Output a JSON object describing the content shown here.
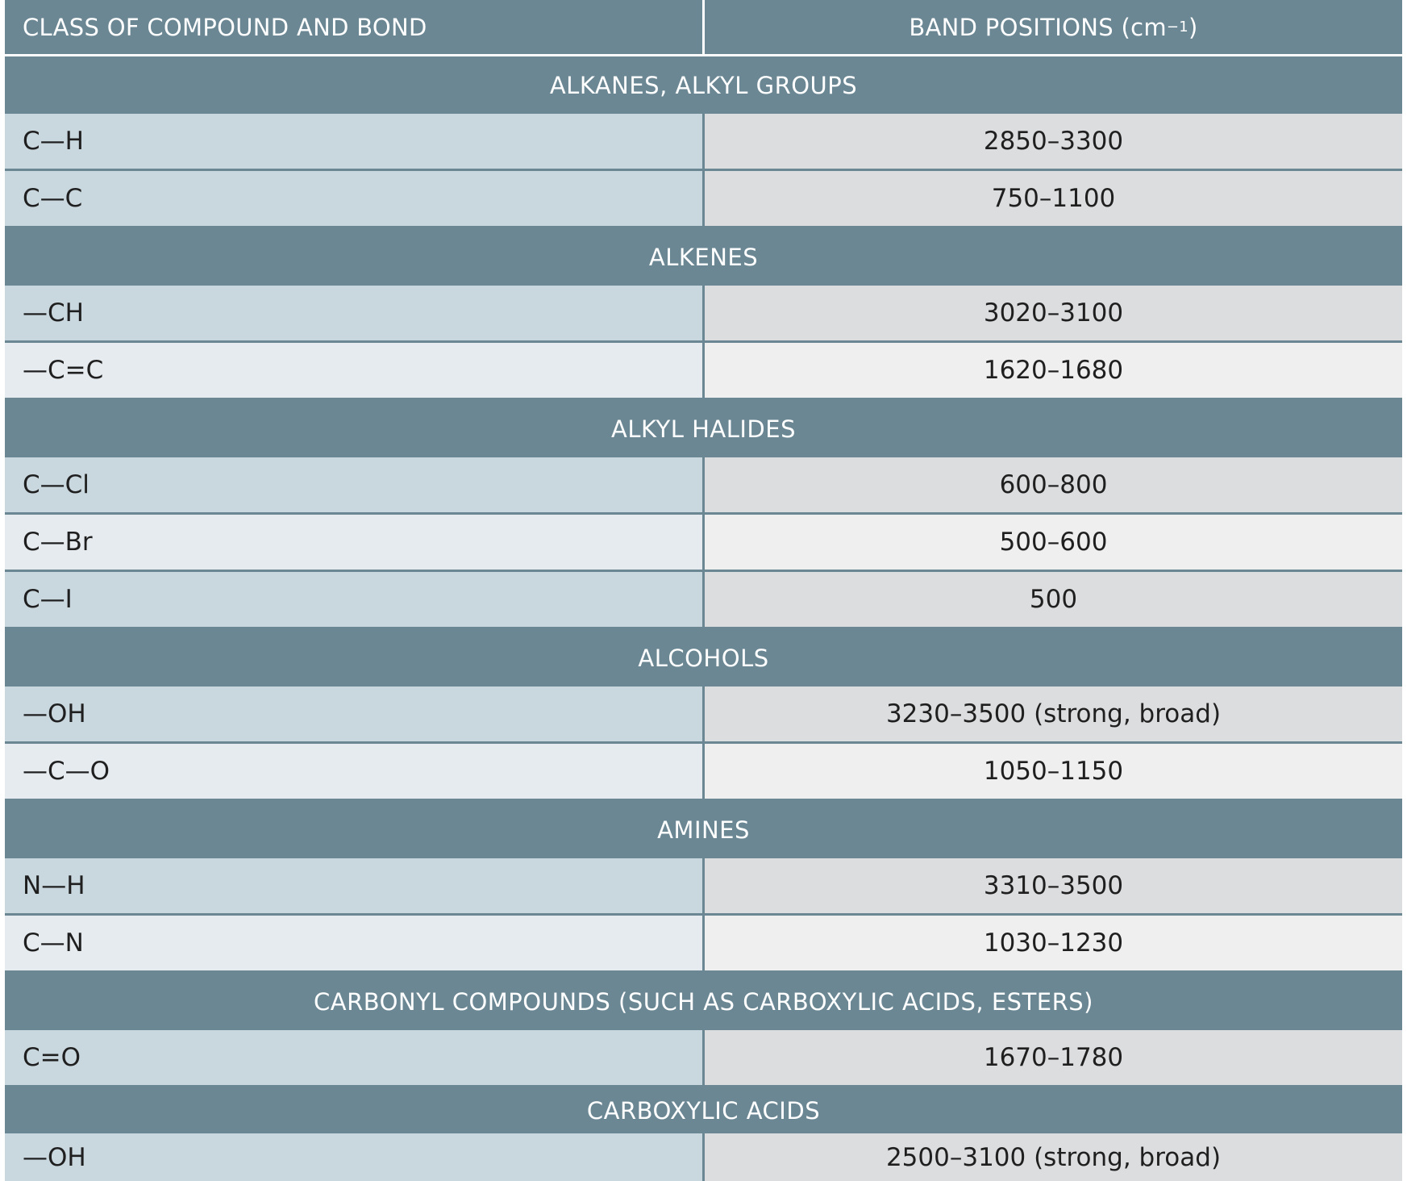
{
  "header": {
    "left": "CLASS OF COMPOUND AND BOND",
    "right_prefix": "BAND POSITIONS (cm",
    "right_sup": "−1",
    "right_suffix": ")"
  },
  "groups": [
    {
      "title": "ALKANES, ALKYL GROUPS",
      "rows": [
        {
          "bond": "C—H",
          "band": "2850–3300"
        },
        {
          "bond": "C—C",
          "band": "750–1100"
        }
      ]
    },
    {
      "title": "ALKENES",
      "rows": [
        {
          "bond": "—CH",
          "band": "3020–3100"
        },
        {
          "bond": "—C=C",
          "band": "1620–1680"
        }
      ]
    },
    {
      "title": "ALKYL HALIDES",
      "rows": [
        {
          "bond": "C—Cl",
          "band": "600–800"
        },
        {
          "bond": "C—Br",
          "band": "500–600"
        },
        {
          "bond": "C—I",
          "band": "500"
        }
      ]
    },
    {
      "title": "ALCOHOLS",
      "rows": [
        {
          "bond": "—OH",
          "band": "3230–3500 (strong, broad)"
        },
        {
          "bond": "—C—O",
          "band": "1050–1150"
        }
      ]
    },
    {
      "title": "AMINES",
      "rows": [
        {
          "bond": "N—H",
          "band": "3310–3500"
        },
        {
          "bond": "C—N",
          "band": "1030–1230"
        }
      ]
    },
    {
      "title": "CARBONYL COMPOUNDS (SUCH AS CARBOXYLIC ACIDS, ESTERS)",
      "rows": [
        {
          "bond": "C=O",
          "band": "1670–1780"
        }
      ]
    },
    {
      "title": "CARBOXYLIC ACIDS",
      "rows": [
        {
          "bond": "—OH",
          "band": "2500–3100 (strong, broad)"
        }
      ]
    }
  ]
}
